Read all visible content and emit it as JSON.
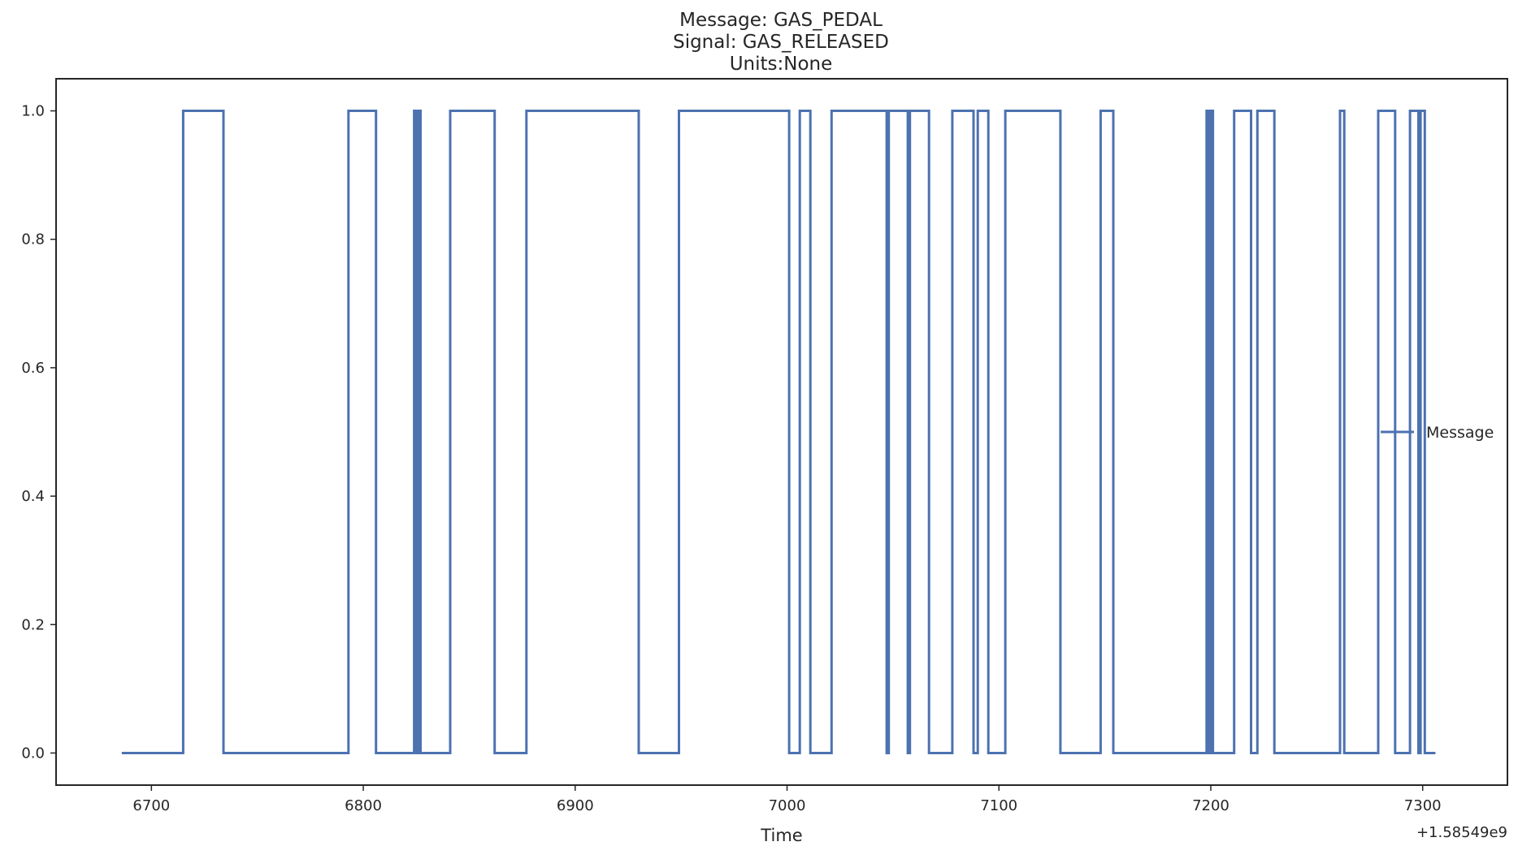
{
  "chart_data": {
    "type": "line",
    "title_lines": [
      "Message: GAS_PEDAL",
      "Signal: GAS_RELEASED",
      "Units:None"
    ],
    "xlabel": "Time",
    "ylabel": "",
    "x_offset_label": "+1.58549e9",
    "xlim": [
      6655,
      7340
    ],
    "ylim": [
      -0.05,
      1.05
    ],
    "x_ticks": [
      6700,
      6800,
      6900,
      7000,
      7100,
      7200,
      7300
    ],
    "x_tick_labels": [
      "6700",
      "6800",
      "6900",
      "7000",
      "7100",
      "7200",
      "7300"
    ],
    "y_ticks": [
      0.0,
      0.2,
      0.4,
      0.6,
      0.8,
      1.0
    ],
    "y_tick_labels": [
      "0.0",
      "0.2",
      "0.4",
      "0.6",
      "0.8",
      "1.0"
    ],
    "grid": false,
    "legend_position": "center-right",
    "series": [
      {
        "name": "Message",
        "color": "#4c72b0",
        "step": true,
        "x": [
          6686,
          6715,
          6734,
          6793,
          6806,
          6824,
          6825,
          6826,
          6827,
          6841,
          6862,
          6877,
          6930,
          6949,
          7001,
          7006,
          7011,
          7021,
          7047,
          7048,
          7057,
          7058,
          7067,
          7078,
          7088,
          7090,
          7095,
          7103,
          7129,
          7148,
          7154,
          7198,
          7199,
          7200,
          7201,
          7211,
          7219,
          7222,
          7230,
          7261,
          7263,
          7279,
          7287,
          7294,
          7298,
          7299,
          7301,
          7306
        ],
        "y": [
          0,
          1,
          0,
          1,
          0,
          1,
          0,
          1,
          0,
          1,
          0,
          1,
          0,
          1,
          0,
          1,
          0,
          1,
          0,
          1,
          0,
          1,
          0,
          1,
          0,
          1,
          0,
          1,
          0,
          1,
          0,
          1,
          0,
          1,
          0,
          1,
          0,
          1,
          0,
          1,
          0,
          1,
          0,
          1,
          0,
          1,
          0,
          0
        ]
      }
    ]
  }
}
